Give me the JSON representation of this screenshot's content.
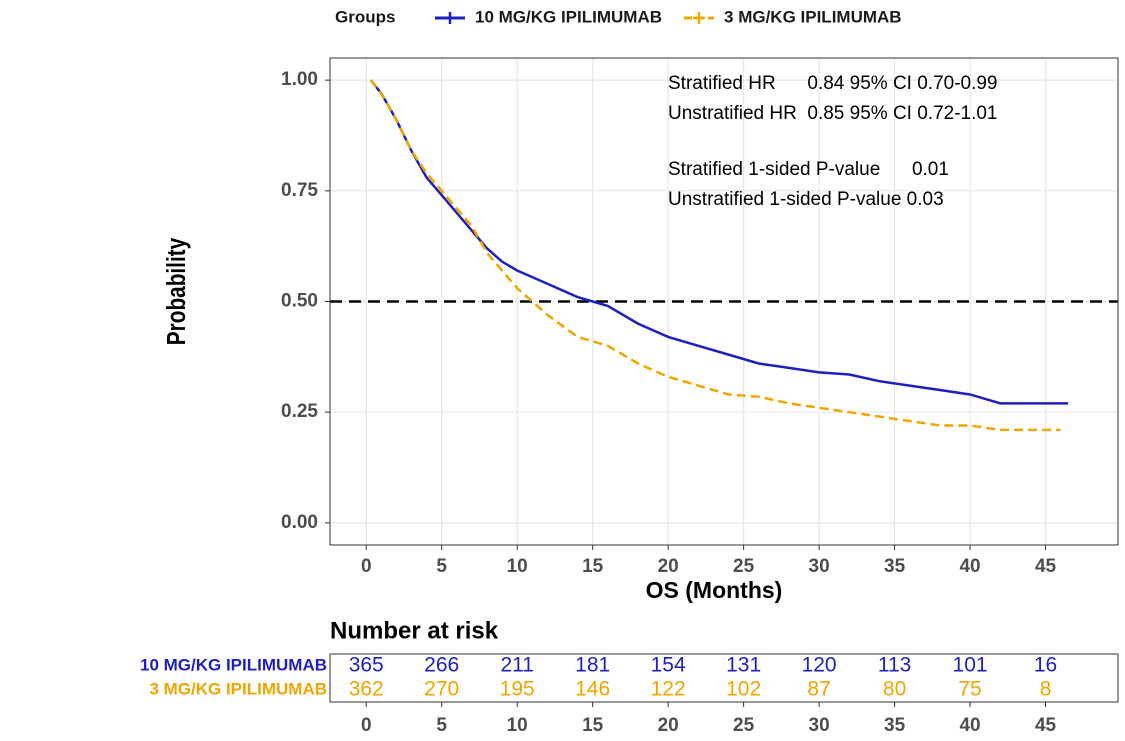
{
  "chart_data": {
    "type": "line",
    "legend_title": "Groups",
    "legend": "top",
    "xlabel": "OS (Months)",
    "ylabel": "Probability",
    "xlim": [
      -2.4,
      49.8
    ],
    "ylim": [
      -0.05,
      1.05
    ],
    "xticks": [
      0,
      5,
      10,
      15,
      20,
      25,
      30,
      35,
      40,
      45
    ],
    "yticks": [
      {
        "value": 0,
        "label": "0.00"
      },
      {
        "value": 0.25,
        "label": "0.25"
      },
      {
        "value": 0.5,
        "label": "0.50"
      },
      {
        "value": 0.75,
        "label": "0.75"
      },
      {
        "value": 1,
        "label": "1.00"
      }
    ],
    "grid": true,
    "hline": 0.5,
    "annotations": [
      "Stratified HR      0.84 95% CI 0.70-0.99",
      "Unstratified HR  0.85 95% CI 0.72-1.01",
      "Stratified 1-sided P-value      0.01",
      "Unstratified 1-sided P-value 0.03"
    ],
    "series": [
      {
        "name": "10 MG/KG IPILIMUMAB",
        "color": "#1f1fbf",
        "dash": false,
        "x": [
          0.3,
          1,
          2,
          3,
          4,
          5,
          6,
          7,
          8,
          9,
          10,
          12,
          14,
          15,
          16,
          18,
          20,
          22,
          24,
          26,
          28,
          30,
          32,
          34,
          36,
          38,
          40,
          42,
          44,
          46.5
        ],
        "values": [
          1.0,
          0.97,
          0.91,
          0.84,
          0.78,
          0.74,
          0.7,
          0.66,
          0.62,
          0.59,
          0.57,
          0.54,
          0.51,
          0.5,
          0.49,
          0.45,
          0.42,
          0.4,
          0.38,
          0.36,
          0.35,
          0.34,
          0.335,
          0.32,
          0.31,
          0.3,
          0.29,
          0.27,
          0.27,
          0.27
        ]
      },
      {
        "name": "3 MG/KG IPILIMUMAB",
        "color": "#f0a500",
        "dash": true,
        "x": [
          0.3,
          1,
          2,
          3,
          4,
          5,
          6,
          7,
          8,
          9,
          10,
          11,
          12,
          14,
          15,
          16,
          18,
          20,
          22,
          24,
          26,
          28,
          30,
          32,
          34,
          36,
          38,
          40,
          42,
          44,
          46
        ],
        "values": [
          1.0,
          0.97,
          0.91,
          0.84,
          0.79,
          0.75,
          0.71,
          0.67,
          0.61,
          0.57,
          0.53,
          0.5,
          0.47,
          0.42,
          0.41,
          0.4,
          0.36,
          0.33,
          0.31,
          0.29,
          0.285,
          0.27,
          0.26,
          0.25,
          0.24,
          0.23,
          0.22,
          0.22,
          0.21,
          0.21,
          0.21
        ]
      }
    ],
    "risk_table": {
      "title": "Number at risk",
      "times": [
        0,
        5,
        10,
        15,
        20,
        25,
        30,
        35,
        40,
        45
      ],
      "rows": [
        {
          "name": "10 MG/KG IPILIMUMAB",
          "color": "#1f1fbf",
          "values": [
            365,
            266,
            211,
            181,
            154,
            131,
            120,
            113,
            101,
            16
          ]
        },
        {
          "name": "3 MG/KG IPILIMUMAB",
          "color": "#f0a500",
          "values": [
            362,
            270,
            195,
            146,
            122,
            102,
            87,
            80,
            75,
            8
          ]
        }
      ]
    }
  }
}
